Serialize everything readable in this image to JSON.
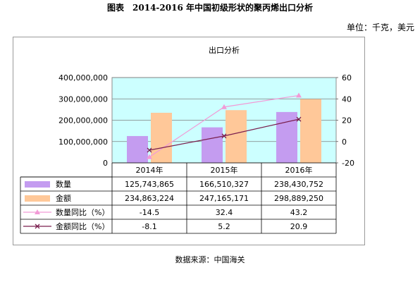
{
  "figure_title": "图表　2014-2016 年中国初级形状的聚丙烯出口分析",
  "unit_note": "单位：千克，美元",
  "source_note": "数据来源：中国海关",
  "chart_data": {
    "type": "bar",
    "title": "出口分析",
    "categories": [
      "2014年",
      "2015年",
      "2016年"
    ],
    "left_axis": {
      "ylim": [
        0,
        400000000
      ],
      "ticks": [
        0,
        100000000,
        200000000,
        300000000,
        400000000
      ],
      "tick_labels": [
        "0",
        "100,000,000",
        "200,000,000",
        "300,000,000",
        "400,000,000"
      ]
    },
    "right_axis": {
      "ylim": [
        -20,
        60
      ],
      "ticks": [
        -20,
        0,
        20,
        40,
        60
      ],
      "tick_labels": [
        "-20",
        "0",
        "20",
        "40",
        "60"
      ]
    },
    "series": [
      {
        "name": "数量",
        "kind": "bar",
        "axis": "left",
        "color": "#c49cf0",
        "values": [
          125743865,
          166510327,
          238430752
        ],
        "labels": [
          "125,743,865",
          "166,510,327",
          "238,430,752"
        ]
      },
      {
        "name": "金额",
        "kind": "bar",
        "axis": "left",
        "color": "#ffc899",
        "values": [
          234863224,
          247165171,
          298889250
        ],
        "labels": [
          "234,863,224",
          "247,165,171",
          "298,889,250"
        ]
      },
      {
        "name": "数量同比（%）",
        "kind": "line",
        "axis": "right",
        "color": "#f29ad6",
        "marker": "triangle",
        "values": [
          -14.5,
          32.4,
          43.2
        ],
        "labels": [
          "-14.5",
          "32.4",
          "43.2"
        ]
      },
      {
        "name": "金额同比（%）",
        "kind": "line",
        "axis": "right",
        "color": "#7a1f4e",
        "marker": "x",
        "values": [
          -8.1,
          5.2,
          20.9
        ],
        "labels": [
          "-8.1",
          "5.2",
          "20.9"
        ]
      }
    ],
    "plot_background": "#ccffff",
    "grid": true,
    "legend": "data-table"
  }
}
